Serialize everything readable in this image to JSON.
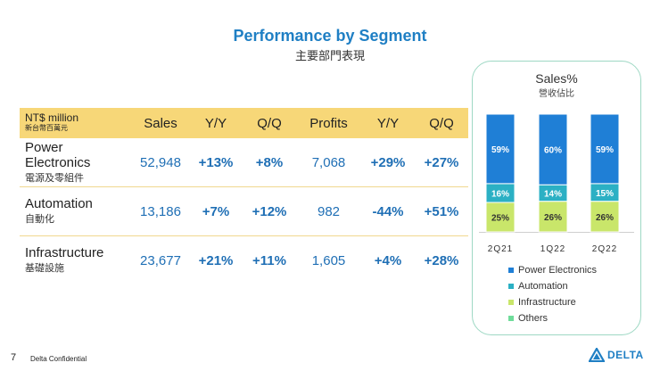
{
  "header": {
    "title": "Performance by Segment",
    "subtitle": "主要部門表現"
  },
  "table": {
    "unit_en": "NT$ million",
    "unit_zh": "新台幣百萬元",
    "columns": [
      "Sales",
      "Y/Y",
      "Q/Q",
      "Profits",
      "Y/Y",
      "Q/Q"
    ],
    "rows": [
      {
        "name_en_1": "Power",
        "name_en_2": "Electronics",
        "name_zh": "電源及零組件",
        "values": [
          "52,948",
          "+13%",
          "+8%",
          "7,068",
          "+29%",
          "+27%"
        ]
      },
      {
        "name_en_1": "Automation",
        "name_en_2": "",
        "name_zh": "自動化",
        "values": [
          "13,186",
          "+7%",
          "+12%",
          "982",
          "-44%",
          "+51%"
        ]
      },
      {
        "name_en_1": "Infrastructure",
        "name_en_2": "",
        "name_zh": "基礎設施",
        "values": [
          "23,677",
          "+21%",
          "+11%",
          "1,605",
          "+4%",
          "+28%"
        ]
      }
    ]
  },
  "sales_panel": {
    "title": "Sales%",
    "subtitle": "營收佔比"
  },
  "chart_data": {
    "type": "bar",
    "stacked": true,
    "categories": [
      "2Q21",
      "1Q22",
      "2Q22"
    ],
    "series": [
      {
        "name": "Others",
        "values": [
          0,
          0,
          0
        ],
        "labels": [
          "",
          "",
          ""
        ],
        "color": "#6fdc9a"
      },
      {
        "name": "Infrastructure",
        "values": [
          25,
          26,
          26
        ],
        "labels": [
          "25%",
          "26%",
          "26%"
        ],
        "color": "#c9e66a"
      },
      {
        "name": "Automation",
        "values": [
          16,
          14,
          15
        ],
        "labels": [
          "16%",
          "14%",
          "15%"
        ],
        "color": "#2bb0c4"
      },
      {
        "name": "Power Electronics",
        "values": [
          59,
          60,
          59
        ],
        "labels": [
          "59%",
          "60%",
          "59%"
        ],
        "color": "#1f7fd6"
      }
    ],
    "ylim": [
      0,
      100
    ],
    "legend_order": [
      "Power Electronics",
      "Automation",
      "Infrastructure",
      "Others"
    ],
    "legend_position": "bottom"
  },
  "footer": {
    "page_number": "7",
    "confidential": "Delta Confidential",
    "logo_text": "DELTA"
  }
}
